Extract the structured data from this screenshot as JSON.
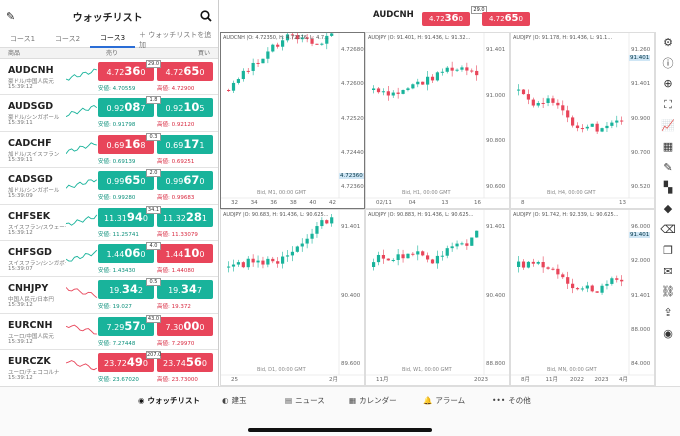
{
  "watchlist": {
    "title": "ウォッチリスト",
    "tabs": [
      "コース1",
      "コース2",
      "コース3"
    ],
    "active_tab": 2,
    "add_label": "ウォッチリストを追加",
    "col_symbol": "商品",
    "col_sell": "売り",
    "col_buy": "買い",
    "low_label": "安値:",
    "high_label": "高値:",
    "rows": [
      {
        "sym": "AUDCNH",
        "sub": "豪ドル/中国人民元",
        "time": "15:39:12",
        "bid_a": "4.72",
        "bid_b": "36",
        "bid_c": "0",
        "ask_a": "4.72",
        "ask_b": "65",
        "ask_c": "0",
        "spread": "29.0",
        "bid_up": false,
        "ask_up": false,
        "low": "4.70559",
        "high": "4.72900",
        "trend": "up"
      },
      {
        "sym": "AUDSGD",
        "sub": "豪ドル/シンガポール",
        "time": "15:39:11",
        "bid_a": "0.92",
        "bid_b": "08",
        "bid_c": "7",
        "ask_a": "0.92",
        "ask_b": "10",
        "ask_c": "5",
        "spread": "1.8",
        "bid_up": true,
        "ask_up": true,
        "low": "0.91798",
        "high": "0.92120",
        "trend": "up"
      },
      {
        "sym": "CADCHF",
        "sub": "加ドル/スイスフラン",
        "time": "15:39:11",
        "bid_a": "0.69",
        "bid_b": "16",
        "bid_c": "8",
        "ask_a": "0.69",
        "ask_b": "17",
        "ask_c": "1",
        "spread": "0.3",
        "bid_up": false,
        "ask_up": true,
        "low": "0.69139",
        "high": "0.69251",
        "trend": "up"
      },
      {
        "sym": "CADSGD",
        "sub": "加ドル/シンガポール",
        "time": "15:39:09",
        "bid_a": "0.99",
        "bid_b": "65",
        "bid_c": "0",
        "ask_a": "0.99",
        "ask_b": "67",
        "ask_c": "0",
        "spread": "2.0",
        "bid_up": true,
        "ask_up": true,
        "low": "0.99280",
        "high": "0.99683",
        "trend": "up"
      },
      {
        "sym": "CHFSEK",
        "sub": "スイスフラン/スウェーデン",
        "time": "15:39:12",
        "bid_a": "11.31",
        "bid_b": "94",
        "bid_c": "0",
        "ask_a": "11.32",
        "ask_b": "28",
        "ask_c": "1",
        "spread": "34.1",
        "bid_up": true,
        "ask_up": true,
        "low": "11.25741",
        "high": "11.33079",
        "trend": "up"
      },
      {
        "sym": "CHFSGD",
        "sub": "スイスフラン/シンガポール",
        "time": "15:39:07",
        "bid_a": "1.44",
        "bid_b": "06",
        "bid_c": "0",
        "ask_a": "1.44",
        "ask_b": "10",
        "ask_c": "0",
        "spread": "4.0",
        "bid_up": true,
        "ask_up": false,
        "low": "1.43430",
        "high": "1.44080",
        "trend": "up"
      },
      {
        "sym": "CNHJPY",
        "sub": "中国人民元/日本円",
        "time": "15:39:12",
        "bid_a": "19.",
        "bid_b": "34",
        "bid_c": "2",
        "ask_a": "19.",
        "ask_b": "34",
        "ask_c": "7",
        "spread": "0.5",
        "bid_up": true,
        "ask_up": true,
        "low": "19.027",
        "high": "19.372",
        "trend": "down"
      },
      {
        "sym": "EURCNH",
        "sub": "ユーロ/中国人民元",
        "time": "15:39:12",
        "bid_a": "7.29",
        "bid_b": "57",
        "bid_c": "0",
        "ask_a": "7.30",
        "ask_b": "00",
        "ask_c": "0",
        "spread": "43.0",
        "bid_up": true,
        "ask_up": false,
        "low": "7.27448",
        "high": "7.29970",
        "trend": "down"
      },
      {
        "sym": "EURCZK",
        "sub": "ユーロ/チェココルナ",
        "time": "15:39:12",
        "bid_a": "23.72",
        "bid_b": "49",
        "bid_c": "0",
        "ask_a": "23.74",
        "ask_b": "56",
        "ask_c": "0",
        "spread": "207.0",
        "bid_up": false,
        "ask_up": false,
        "low": "23.67020",
        "high": "23.73000",
        "trend": "down"
      }
    ]
  },
  "topbar": {
    "symbol": "AUDCNH",
    "bid_a": "4.72",
    "bid_b": "36",
    "bid_c": "0",
    "ask_a": "4.72",
    "ask_b": "65",
    "ask_c": "0",
    "spread": "29.0"
  },
  "charts": [
    {
      "label": "AUDCNH |O: 4.72350, H: 4.72376, L: 4.7...",
      "foot": "Bid, M1, 00:00 GMT",
      "ticks": [
        "4.72680",
        "4.72600",
        "4.72520",
        "4.72440",
        "4.72360"
      ],
      "xt": [
        "32",
        "34",
        "36",
        "38",
        "40",
        "42"
      ],
      "cur": "4.72360",
      "seed": 3,
      "trend": 1
    },
    {
      "label": "AUDJPY |O: 91.401, H: 91.436, L: 91.32...",
      "foot": "Bid, H1, 00:00 GMT",
      "ticks": [
        "91.401",
        "91.000",
        "90.800",
        "90.600"
      ],
      "xt": [
        "02/11",
        "04",
        "13",
        "16"
      ],
      "cur": "",
      "seed": 7,
      "trend": 1
    },
    {
      "label": "AUDJPY |O: 91.178, H: 91.436, L: 91.1...",
      "foot": "Bid, H4, 00:00 GMT",
      "ticks": [
        "91.260",
        "91.401",
        "90.900",
        "90.700",
        "90.520"
      ],
      "xt": [
        "8",
        "13"
      ],
      "cur": "91.401",
      "seed": 11,
      "trend": -1
    },
    {
      "label": "AUDJPY |O: 90.683, H: 91.436, L: 90.625...",
      "foot": "Bid, D1, 00:00 GMT",
      "ticks": [
        "91.401",
        "90.400",
        "89.600"
      ],
      "xt": [
        "25",
        "2月"
      ],
      "cur": "",
      "seed": 5,
      "trend": 1
    },
    {
      "label": "AUDJPY |O: 90.883, H: 91.436, L: 90.625...",
      "foot": "Bid, W1, 00:00 GMT",
      "ticks": [
        "91.401",
        "90.400",
        "88.800"
      ],
      "xt": [
        "11月",
        "2023"
      ],
      "cur": "",
      "seed": 13,
      "trend": 1
    },
    {
      "label": "AUDJPY |O: 91.742, H: 92.339, L: 90.625...",
      "foot": "Bid, MN, 00:00 GMT",
      "ticks": [
        "96.000",
        "92.000",
        "91.401",
        "88.000",
        "84.000"
      ],
      "xt": [
        "8月",
        "11月",
        "2022",
        "2023",
        "4月"
      ],
      "cur": "91.401",
      "seed": 17,
      "trend": 0
    }
  ],
  "toolbar_icons": [
    "gear-icon",
    "info-icon",
    "crosshair-icon",
    "fullscreen-icon",
    "chart-line-icon",
    "chart-area-icon",
    "pen-icon",
    "layout-icon",
    "fill-icon",
    "eraser-icon",
    "duplicate-icon",
    "message-icon",
    "link-icon",
    "share-icon",
    "eye-icon"
  ],
  "nav": [
    {
      "label": "ウォッチリスト",
      "icon": "eye-icon",
      "active": true
    },
    {
      "label": "建玉",
      "icon": "position-icon",
      "active": false
    },
    {
      "label": "ニュース",
      "icon": "news-icon",
      "active": false
    },
    {
      "label": "カレンダー",
      "icon": "calendar-icon",
      "active": false
    },
    {
      "label": "アラーム",
      "icon": "bell-icon",
      "active": false
    },
    {
      "label": "その他",
      "icon": "more-icon",
      "active": false
    }
  ],
  "colors": {
    "up": "#19b39b",
    "down": "#e8455a",
    "accent": "#2a6dd6"
  }
}
